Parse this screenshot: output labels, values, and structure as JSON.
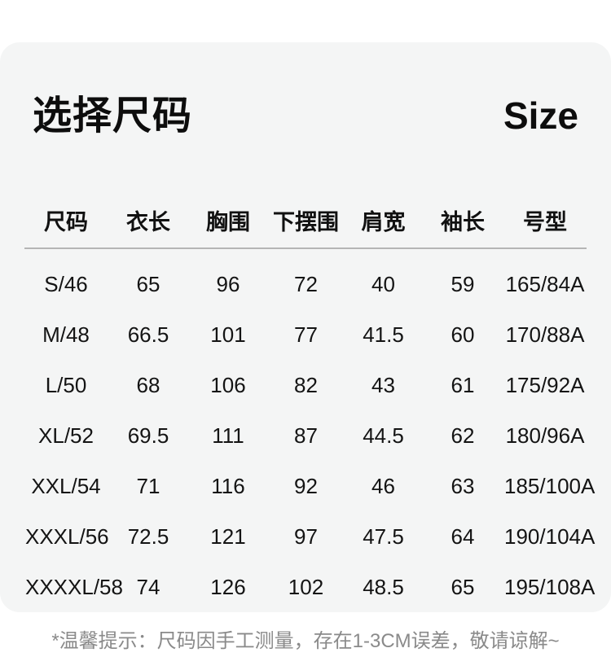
{
  "header": {
    "title_cn": "选择尺码",
    "title_en": "Size"
  },
  "table": {
    "columns": [
      "尺码",
      "衣长",
      "胸围",
      "下摆围",
      "肩宽",
      "袖长",
      "号型"
    ],
    "rows": [
      [
        "S/46",
        "65",
        "96",
        "72",
        "40",
        "59",
        "165/84A"
      ],
      [
        "M/48",
        "66.5",
        "101",
        "77",
        "41.5",
        "60",
        "170/88A"
      ],
      [
        "L/50",
        "68",
        "106",
        "82",
        "43",
        "61",
        "175/92A"
      ],
      [
        "XL/52",
        "69.5",
        "111",
        "87",
        "44.5",
        "62",
        "180/96A"
      ],
      [
        "XXL/54",
        "71",
        "116",
        "92",
        "46",
        "63",
        "185/100A"
      ],
      [
        "XXXL/56",
        "72.5",
        "121",
        "97",
        "47.5",
        "64",
        "190/104A"
      ],
      [
        "XXXXL/58",
        "74",
        "126",
        "102",
        "48.5",
        "65",
        "195/108A"
      ]
    ]
  },
  "footer": {
    "note": "*温馨提示：尺码因手工测量，存在1-3CM误差，敬请谅解~"
  },
  "colors": {
    "page_bg": "#ffffff",
    "card_bg": "#f4f5f5",
    "text": "#111111",
    "divider": "#b5b5b5",
    "note_text": "#8a8a8a"
  },
  "chart_data": {
    "type": "table",
    "title": "选择尺码 Size",
    "columns": [
      "尺码",
      "衣长",
      "胸围",
      "下摆围",
      "肩宽",
      "袖长",
      "号型"
    ],
    "rows": [
      [
        "S/46",
        "65",
        "96",
        "72",
        "40",
        "59",
        "165/84A"
      ],
      [
        "M/48",
        "66.5",
        "101",
        "77",
        "41.5",
        "60",
        "170/88A"
      ],
      [
        "L/50",
        "68",
        "106",
        "82",
        "43",
        "61",
        "175/92A"
      ],
      [
        "XL/52",
        "69.5",
        "111",
        "87",
        "44.5",
        "62",
        "180/96A"
      ],
      [
        "XXL/54",
        "71",
        "116",
        "92",
        "46",
        "63",
        "185/100A"
      ],
      [
        "XXXL/56",
        "72.5",
        "121",
        "97",
        "47.5",
        "64",
        "190/104A"
      ],
      [
        "XXXXL/58",
        "74",
        "126",
        "102",
        "48.5",
        "65",
        "195/108A"
      ]
    ]
  }
}
